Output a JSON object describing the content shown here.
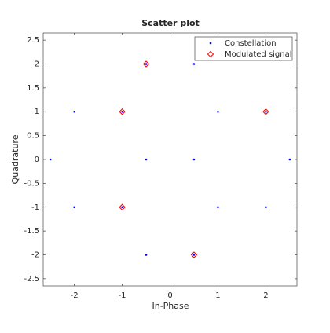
{
  "chart_data": {
    "type": "scatter",
    "title": "Scatter plot",
    "x_label": "In-Phase",
    "y_label": "Quadrature",
    "xlim": [
      -2.65,
      2.65
    ],
    "ylim": [
      -2.65,
      2.65
    ],
    "xticks": [
      -2,
      -1,
      0,
      1,
      2
    ],
    "yticks": [
      -2.5,
      -2,
      -1.5,
      -1,
      -0.5,
      0,
      0.5,
      1,
      1.5,
      2,
      2.5
    ],
    "legend_position": "upper-right",
    "series": [
      {
        "name": "Constellation",
        "color": "#0000ff",
        "marker": "dot",
        "x": [
          -2.5,
          -2,
          -2,
          -1,
          -1,
          -0.5,
          -0.5,
          -0.5,
          0.5,
          0.5,
          0.5,
          1,
          1,
          2,
          2,
          2.5
        ],
        "y": [
          0,
          1,
          -1,
          1,
          -1,
          2,
          0,
          -2,
          2,
          0,
          -2,
          1,
          -1,
          1,
          -1,
          0
        ]
      },
      {
        "name": "Modulated signal",
        "color": "#ff0000",
        "marker": "diamond",
        "x": [
          -0.5,
          -1,
          -1,
          0.5,
          2
        ],
        "y": [
          2,
          1,
          -1,
          -2,
          1
        ]
      }
    ]
  }
}
